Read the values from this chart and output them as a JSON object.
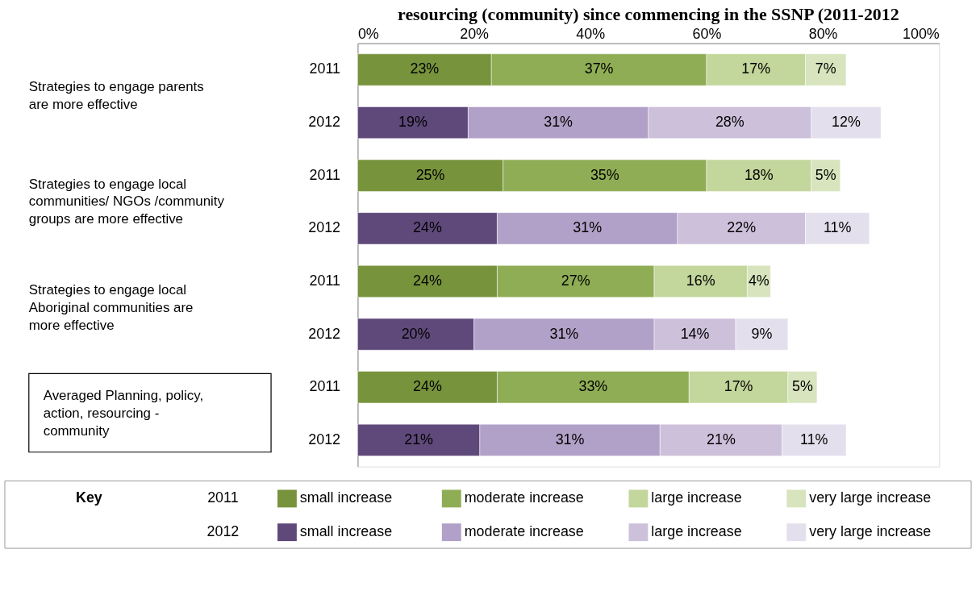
{
  "chart_data": {
    "type": "bar",
    "orientation": "horizontal",
    "stacked": true,
    "title": "resourcing (community) since commencing in the SSNP (2011-2012",
    "categories": [
      "2011",
      "2012",
      "2011",
      "2012",
      "2011",
      "2012",
      "2011",
      "2012"
    ],
    "series": [
      {
        "name": "small increase",
        "colors": [
          "#77933c",
          "#5f497a",
          "#77933c",
          "#5f497a",
          "#77933c",
          "#5f497a",
          "#77933c",
          "#5f497a"
        ],
        "values": [
          23,
          19,
          25,
          24,
          24,
          20,
          24,
          21
        ],
        "value_labels": [
          "23%",
          "19%",
          "25%",
          "24%",
          "24%",
          "20%",
          "24%",
          "21%"
        ]
      },
      {
        "name": "moderate increase",
        "colors": [
          "#8fad55",
          "#b1a0c7",
          "#8fad55",
          "#b1a0c7",
          "#8fad55",
          "#b1a0c7",
          "#8fad55",
          "#b1a0c7"
        ],
        "values": [
          37,
          31,
          35,
          31,
          27,
          31,
          33,
          31
        ],
        "value_labels": [
          "37%",
          "31%",
          "35%",
          "31%",
          "27%",
          "31%",
          "33%",
          "31%"
        ]
      },
      {
        "name": "large increase",
        "colors": [
          "#c3d69b",
          "#ccc0da",
          "#c3d69b",
          "#ccc0da",
          "#c3d69b",
          "#ccc0da",
          "#c3d69b",
          "#ccc0da"
        ],
        "values": [
          17,
          28,
          18,
          22,
          16,
          14,
          17,
          21
        ],
        "value_labels": [
          "17%",
          "28%",
          "18%",
          "22%",
          "16%",
          "14%",
          "17%",
          "21%"
        ]
      },
      {
        "name": "very large increase",
        "colors": [
          "#d7e4bd",
          "#e4dfec",
          "#d7e4bd",
          "#e4dfec",
          "#d7e4bd",
          "#e4dfec",
          "#d7e4bd",
          "#e4dfec"
        ],
        "values": [
          7,
          12,
          5,
          11,
          4,
          9,
          5,
          11
        ],
        "value_labels": [
          "7%",
          "12%",
          "5%",
          "11%",
          "4%",
          "9%",
          "5%",
          "11%"
        ]
      }
    ],
    "xlim": [
      0,
      100
    ],
    "xticks": [
      {
        "value": 0,
        "label": "0%"
      },
      {
        "value": 20,
        "label": "20%"
      },
      {
        "value": 40,
        "label": "40%"
      },
      {
        "value": 60,
        "label": "60%"
      },
      {
        "value": 80,
        "label": "80%"
      },
      {
        "value": 100,
        "label": "100%"
      }
    ],
    "legend_title": "Key",
    "legend": "bottom",
    "grid": false,
    "annotations": [
      "Strategies to engage parents are more effective",
      "Strategies to engage local communities/ NGOs /community groups are more effective",
      "Strategies to engage local Aboriginal communities are more effective",
      "Averaged Planning, policy, action, resourcing - community"
    ]
  }
}
